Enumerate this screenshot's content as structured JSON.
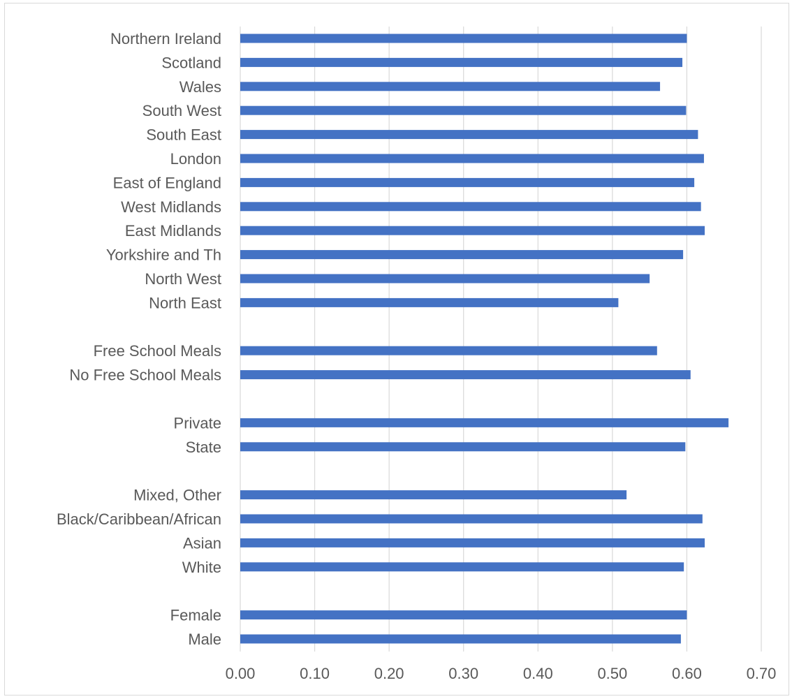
{
  "chart_data": {
    "type": "bar",
    "orientation": "horizontal",
    "title": "",
    "xlabel": "",
    "ylabel": "",
    "xlim": [
      0,
      0.7
    ],
    "x_ticks": [
      "0.00",
      "0.10",
      "0.20",
      "0.30",
      "0.40",
      "0.50",
      "0.60",
      "0.70"
    ],
    "grid": "vertical",
    "legend": "none",
    "bar_color": "#4472c4",
    "grid_color": "#d9d9d9",
    "label_color": "#595959",
    "categories": [
      "Northern Ireland",
      "Scotland",
      "Wales",
      "South West",
      "South East",
      "London",
      "East of England",
      "West Midlands",
      "East Midlands",
      "Yorkshire and Th",
      "North West",
      "North East",
      "",
      "Free School Meals",
      "No Free School Meals",
      "",
      "Private",
      "State",
      "",
      "Mixed, Other",
      "Black/Caribbean/African",
      "Asian",
      "White",
      "",
      "Female",
      "Male"
    ],
    "values": [
      0.6,
      0.594,
      0.564,
      0.599,
      0.615,
      0.623,
      0.61,
      0.619,
      0.624,
      0.595,
      0.55,
      0.508,
      null,
      0.56,
      0.605,
      null,
      0.656,
      0.598,
      null,
      0.519,
      0.621,
      0.624,
      0.596,
      null,
      0.6,
      0.592
    ]
  }
}
